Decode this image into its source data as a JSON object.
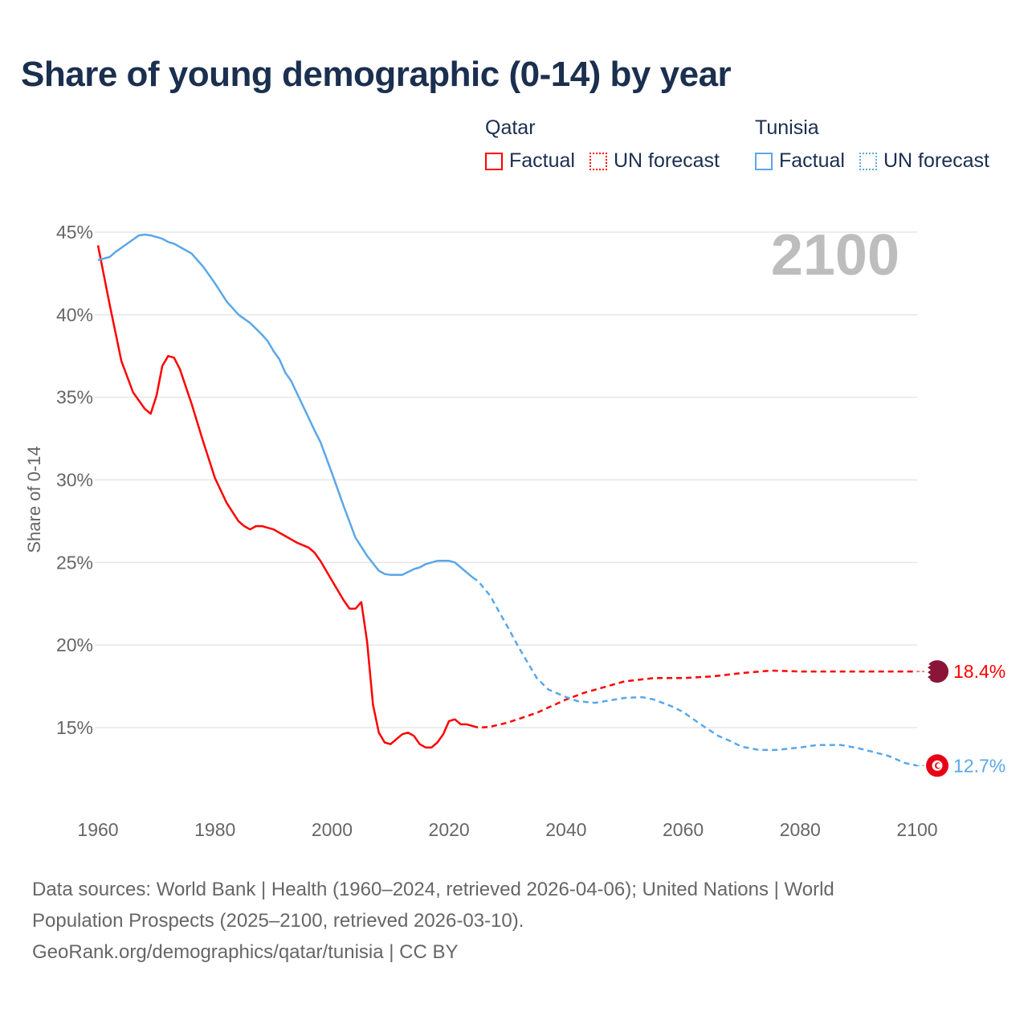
{
  "title": "Share of young demographic (0-14) by year",
  "legend": {
    "groups": [
      {
        "name": "Qatar",
        "color": "#ff0000",
        "factual": "Factual",
        "forecast": "UN forecast"
      },
      {
        "name": "Tunisia",
        "color": "#5aa7e8",
        "factual": "Factual",
        "forecast": "UN forecast"
      }
    ]
  },
  "footer": {
    "line1": "Data sources: World Bank | Health (1960–2024, retrieved 2026-04-06); United Nations | World",
    "line2": "Population Prospects (2025–2100, retrieved 2026-03-10).",
    "line3": "GeoRank.org/demographics/qatar/tunisia | CC BY"
  },
  "chart_data": {
    "type": "line",
    "title": "Share of young demographic (0-14) by year",
    "ylabel": "Share of 0-14",
    "xlabel": "",
    "year_label": "2100",
    "xlim": [
      1960,
      2100
    ],
    "ylim": [
      10,
      45
    ],
    "x_ticks": [
      "1960",
      "1980",
      "2000",
      "2020",
      "2040",
      "2060",
      "2080",
      "2100"
    ],
    "y_ticks": [
      {
        "v": 15,
        "label": "15%"
      },
      {
        "v": 20,
        "label": "20%"
      },
      {
        "v": 25,
        "label": "25%"
      },
      {
        "v": 30,
        "label": "30%"
      },
      {
        "v": 35,
        "label": "35%"
      },
      {
        "v": 40,
        "label": "40%"
      },
      {
        "v": 45,
        "label": "45%"
      }
    ],
    "grid": true,
    "series": [
      {
        "name": "Qatar",
        "color": "#ff0000",
        "end_label": "18.4%",
        "factual": [
          [
            1960,
            44.2
          ],
          [
            1962,
            40.6
          ],
          [
            1963,
            38.9
          ],
          [
            1964,
            37.2
          ],
          [
            1966,
            35.3
          ],
          [
            1968,
            34.3
          ],
          [
            1969,
            34.0
          ],
          [
            1970,
            35.1
          ],
          [
            1971,
            36.9
          ],
          [
            1972,
            37.5
          ],
          [
            1973,
            37.4
          ],
          [
            1974,
            36.7
          ],
          [
            1976,
            34.6
          ],
          [
            1978,
            32.3
          ],
          [
            1980,
            30.1
          ],
          [
            1982,
            28.6
          ],
          [
            1984,
            27.5
          ],
          [
            1985,
            27.2
          ],
          [
            1986,
            27.0
          ],
          [
            1987,
            27.2
          ],
          [
            1988,
            27.2
          ],
          [
            1990,
            27.0
          ],
          [
            1992,
            26.6
          ],
          [
            1994,
            26.2
          ],
          [
            1996,
            25.9
          ],
          [
            1997,
            25.6
          ],
          [
            1998,
            25.1
          ],
          [
            2000,
            23.9
          ],
          [
            2002,
            22.7
          ],
          [
            2003,
            22.2
          ],
          [
            2004,
            22.2
          ],
          [
            2005,
            22.6
          ],
          [
            2006,
            20.2
          ],
          [
            2007,
            16.4
          ],
          [
            2008,
            14.7
          ],
          [
            2009,
            14.1
          ],
          [
            2010,
            14.0
          ],
          [
            2012,
            14.6
          ],
          [
            2013,
            14.7
          ],
          [
            2014,
            14.5
          ],
          [
            2015,
            14.0
          ],
          [
            2016,
            13.8
          ],
          [
            2017,
            13.8
          ],
          [
            2018,
            14.1
          ],
          [
            2019,
            14.6
          ],
          [
            2020,
            15.4
          ],
          [
            2021,
            15.5
          ],
          [
            2022,
            15.2
          ],
          [
            2023,
            15.2
          ],
          [
            2024,
            15.1
          ]
        ],
        "forecast": [
          [
            2024,
            15.1
          ],
          [
            2025,
            15.0
          ],
          [
            2027,
            15.05
          ],
          [
            2030,
            15.3
          ],
          [
            2035,
            15.9
          ],
          [
            2040,
            16.7
          ],
          [
            2043,
            17.1
          ],
          [
            2045,
            17.3
          ],
          [
            2050,
            17.8
          ],
          [
            2055,
            18.0
          ],
          [
            2060,
            18.0
          ],
          [
            2065,
            18.1
          ],
          [
            2070,
            18.3
          ],
          [
            2075,
            18.45
          ],
          [
            2080,
            18.4
          ],
          [
            2090,
            18.4
          ],
          [
            2100,
            18.4
          ]
        ]
      },
      {
        "name": "Tunisia",
        "color": "#5aa7e8",
        "end_label": "12.7%",
        "factual": [
          [
            1960,
            43.3
          ],
          [
            1962,
            43.5
          ],
          [
            1963,
            43.8
          ],
          [
            1965,
            44.3
          ],
          [
            1967,
            44.8
          ],
          [
            1968,
            44.85
          ],
          [
            1969,
            44.8
          ],
          [
            1971,
            44.6
          ],
          [
            1972,
            44.4
          ],
          [
            1973,
            44.3
          ],
          [
            1975,
            43.9
          ],
          [
            1976,
            43.7
          ],
          [
            1977,
            43.3
          ],
          [
            1978,
            42.9
          ],
          [
            1980,
            41.9
          ],
          [
            1982,
            40.8
          ],
          [
            1984,
            40.0
          ],
          [
            1986,
            39.5
          ],
          [
            1988,
            38.8
          ],
          [
            1989,
            38.4
          ],
          [
            1990,
            37.8
          ],
          [
            1991,
            37.3
          ],
          [
            1992,
            36.5
          ],
          [
            1993,
            36.0
          ],
          [
            1995,
            34.5
          ],
          [
            1997,
            33.0
          ],
          [
            1998,
            32.3
          ],
          [
            2000,
            30.4
          ],
          [
            2002,
            28.4
          ],
          [
            2004,
            26.5
          ],
          [
            2006,
            25.4
          ],
          [
            2008,
            24.5
          ],
          [
            2009,
            24.3
          ],
          [
            2010,
            24.25
          ],
          [
            2012,
            24.25
          ],
          [
            2014,
            24.6
          ],
          [
            2015,
            24.7
          ],
          [
            2016,
            24.9
          ],
          [
            2018,
            25.1
          ],
          [
            2020,
            25.1
          ],
          [
            2021,
            25.0
          ],
          [
            2022,
            24.7
          ],
          [
            2023,
            24.4
          ],
          [
            2024,
            24.1
          ]
        ],
        "forecast": [
          [
            2024,
            24.1
          ],
          [
            2025,
            23.85
          ],
          [
            2027,
            23.0
          ],
          [
            2030,
            21.1
          ],
          [
            2032,
            19.8
          ],
          [
            2035,
            18.0
          ],
          [
            2037,
            17.3
          ],
          [
            2040,
            16.85
          ],
          [
            2042,
            16.6
          ],
          [
            2045,
            16.5
          ],
          [
            2050,
            16.8
          ],
          [
            2053,
            16.85
          ],
          [
            2055,
            16.7
          ],
          [
            2058,
            16.3
          ],
          [
            2060,
            15.95
          ],
          [
            2063,
            15.2
          ],
          [
            2066,
            14.5
          ],
          [
            2068,
            14.2
          ],
          [
            2070,
            13.85
          ],
          [
            2073,
            13.65
          ],
          [
            2076,
            13.65
          ],
          [
            2080,
            13.8
          ],
          [
            2083,
            13.95
          ],
          [
            2087,
            13.95
          ],
          [
            2090,
            13.75
          ],
          [
            2095,
            13.3
          ],
          [
            2098,
            12.85
          ],
          [
            2100,
            12.7
          ]
        ]
      }
    ]
  }
}
